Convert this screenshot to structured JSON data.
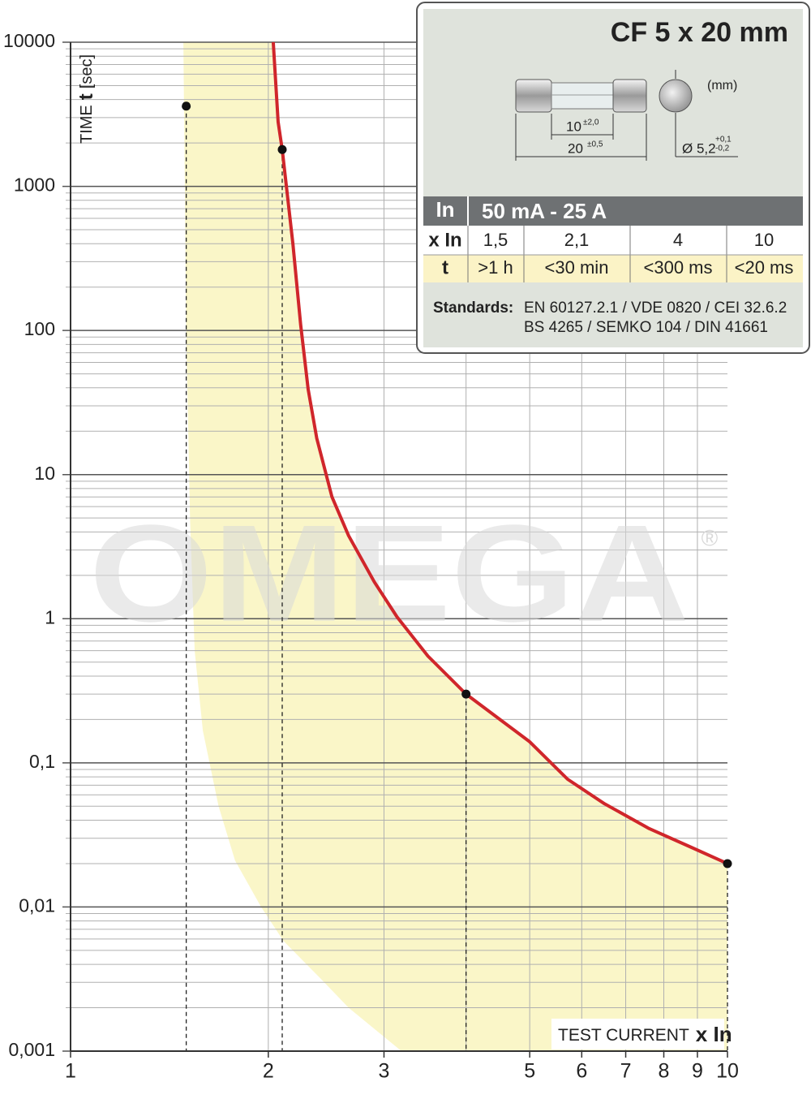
{
  "chart_data": {
    "type": "line",
    "xscale": "log",
    "yscale": "log",
    "xlim": [
      1,
      10
    ],
    "ylim": [
      0.001,
      10000
    ],
    "xticks": [
      1,
      2,
      3,
      5,
      6,
      7,
      8,
      9,
      10
    ],
    "yticks": [
      10000,
      1000,
      100,
      10,
      1,
      {
        "value": 0.1,
        "label": "0,1"
      },
      {
        "value": 0.01,
        "label": "0,01"
      },
      {
        "value": 0.001,
        "label": "0,001"
      }
    ],
    "grid": true,
    "minor_grid": true,
    "y_label": [
      "TIME",
      "t",
      "[sec]"
    ],
    "x_label": [
      "TEST CURRENT",
      "x In"
    ],
    "curve": {
      "color": "#d0262b",
      "x": [
        2.035,
        2.07,
        2.1,
        2.18,
        2.24,
        2.3,
        2.37,
        2.5,
        2.65,
        2.9,
        3.14,
        3.5,
        4,
        5,
        5.71,
        6.5,
        7.6,
        8.8,
        10
      ],
      "y": [
        10000,
        2800,
        1800,
        400,
        110,
        39,
        17.9,
        7,
        3.77,
        1.8,
        1.03,
        0.55,
        0.3,
        0.14,
        0.077,
        0.052,
        0.035,
        0.026,
        0.02
      ]
    },
    "band": {
      "color": "#faf6c8",
      "x": [
        1.485,
        1.5,
        1.52,
        1.545,
        1.59,
        1.68,
        1.78,
        1.95,
        2.11,
        2.4,
        2.65,
        3.19
      ],
      "y": [
        10000,
        100,
        5,
        0.6,
        0.167,
        0.05,
        0.021,
        0.01,
        0.0058,
        0.0032,
        0.002,
        0.001
      ]
    },
    "points": {
      "color": "#111111",
      "x": [
        1.5,
        2.1,
        4,
        10
      ],
      "y": [
        3600,
        1800,
        0.3,
        0.02
      ]
    },
    "watermark": "OMEGA",
    "watermark_mark": "®"
  },
  "info_box": {
    "title": "CF 5 x 20 mm",
    "unit": "(mm)",
    "dims": {
      "inner": "10",
      "inner_tol": "±2,0",
      "outer": "20",
      "outer_tol": "±0,5",
      "diameter": "Ø 5,2",
      "dia_tol_plus": "+0,1",
      "dia_tol_minus": "-0,2"
    },
    "table": {
      "header": [
        "In",
        "50 mA - 25 A"
      ],
      "rows": [
        [
          "x In",
          "1,5",
          "2,1",
          "4",
          "10"
        ],
        [
          "t",
          ">1 h",
          "<30 min",
          "<300 ms",
          "<20 ms"
        ]
      ]
    },
    "standards": {
      "label": "Standards:",
      "lines": [
        "EN 60127.2.1 / VDE 0820 / CEI 32.6.2",
        "BS 4265 / SEMKO 104 / DIN 41661"
      ]
    }
  }
}
